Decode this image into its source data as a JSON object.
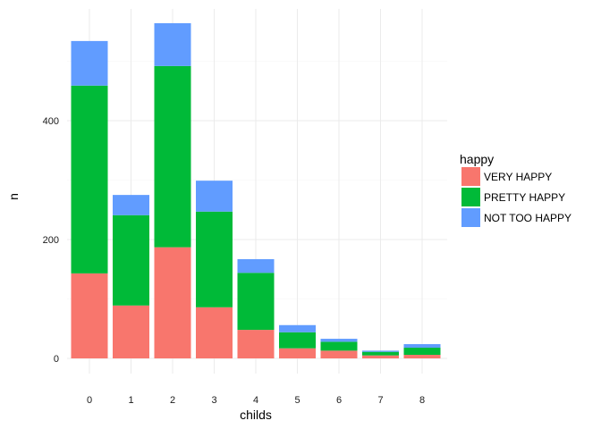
{
  "chart_data": {
    "type": "bar",
    "stacked": true,
    "title": "",
    "xlabel": "childs",
    "ylabel": "n",
    "categories": [
      "0",
      "1",
      "2",
      "3",
      "4",
      "5",
      "6",
      "7",
      "8"
    ],
    "y_ticks": [
      0,
      200,
      400
    ],
    "ylim": [
      0,
      580
    ],
    "grid": true,
    "legend": {
      "title": "happy",
      "position": "right"
    },
    "series": [
      {
        "name": "VERY HAPPY",
        "color": "#F8766D",
        "values": [
          143,
          89,
          187,
          86,
          48,
          17,
          13,
          5,
          6
        ]
      },
      {
        "name": "PRETTY HAPPY",
        "color": "#00BA38",
        "values": [
          316,
          152,
          305,
          161,
          96,
          27,
          15,
          6,
          12
        ]
      },
      {
        "name": "NOT TOO HAPPY",
        "color": "#619CFF",
        "values": [
          75,
          34,
          72,
          52,
          23,
          12,
          5,
          2,
          6
        ]
      }
    ]
  }
}
